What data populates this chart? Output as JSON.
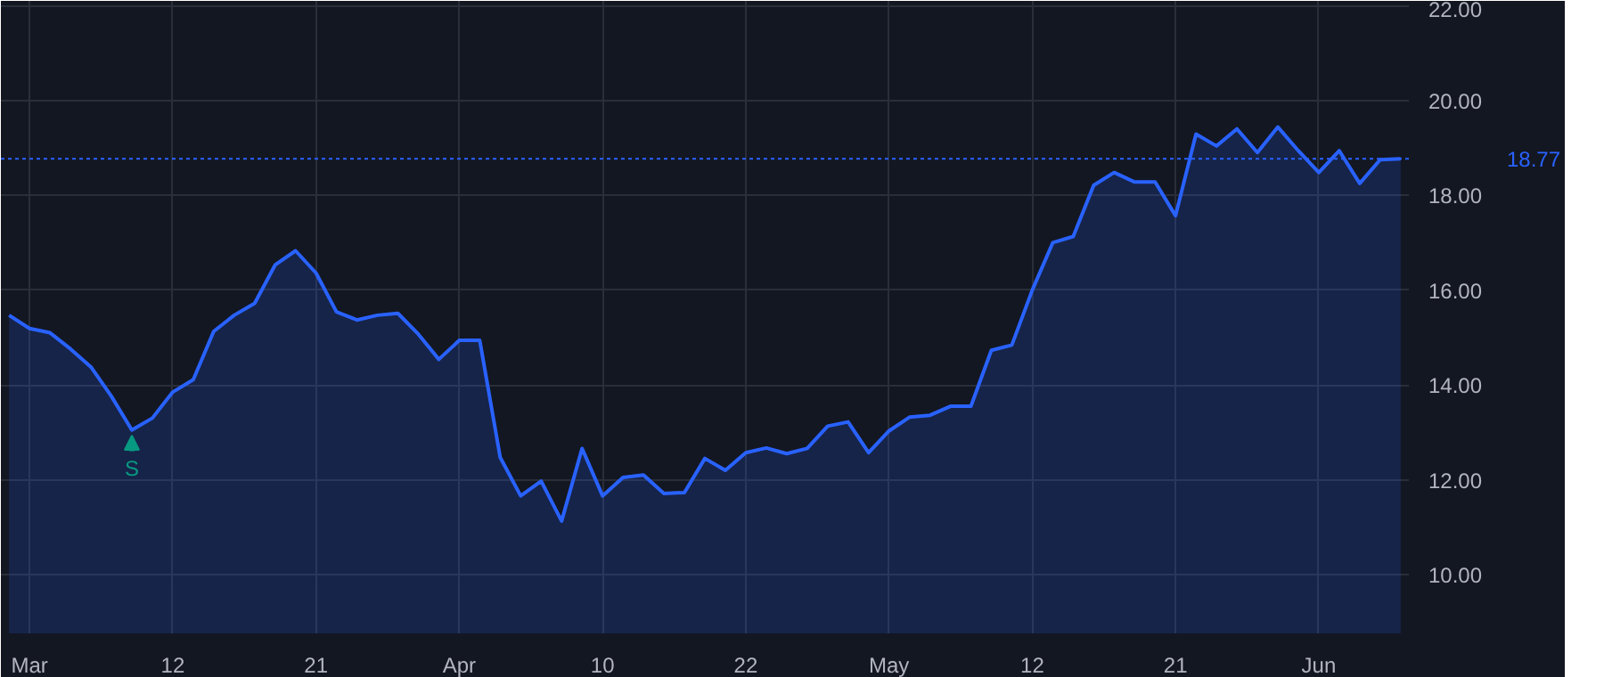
{
  "chart_data": {
    "type": "area",
    "categories": [
      null,
      "Mar",
      null,
      null,
      null,
      null,
      null,
      null,
      "12",
      null,
      null,
      null,
      null,
      null,
      null,
      "21",
      null,
      null,
      null,
      null,
      null,
      null,
      "Apr",
      null,
      null,
      null,
      null,
      null,
      null,
      "10",
      null,
      null,
      null,
      null,
      null,
      null,
      "22",
      null,
      null,
      null,
      null,
      null,
      null,
      "May",
      null,
      null,
      null,
      null,
      null,
      null,
      "12",
      null,
      null,
      null,
      null,
      null,
      null,
      "21",
      null,
      null,
      null,
      null,
      null,
      null,
      "Jun",
      null,
      null,
      null,
      null
    ],
    "series": [
      {
        "color": "#2962ff",
        "values": [
          15.47,
          15.19,
          15.1,
          14.76,
          14.38,
          13.76,
          13.05,
          13.3,
          13.85,
          14.11,
          15.13,
          15.47,
          15.72,
          16.53,
          16.83,
          16.36,
          15.54,
          15.37,
          15.47,
          15.51,
          15.07,
          14.54,
          14.94,
          14.94,
          12.47,
          11.66,
          11.97,
          11.13,
          12.66,
          11.66,
          12.05,
          12.1,
          11.71,
          11.73,
          12.45,
          12.2,
          12.57,
          12.67,
          12.55,
          12.66,
          13.13,
          13.22,
          12.57,
          13.03,
          13.32,
          13.36,
          13.55,
          13.55,
          14.73,
          14.84,
          16.0,
          17.0,
          17.13,
          18.21,
          18.48,
          18.28,
          18.28,
          17.57,
          19.29,
          19.04,
          19.4,
          18.9,
          19.44,
          18.94,
          18.48,
          18.94,
          18.25,
          18.75,
          18.77
        ]
      }
    ],
    "ylim": [
      8.76,
      22.1
    ],
    "yticks": [
      {
        "value": 10,
        "label": "10.00"
      },
      {
        "value": 12,
        "label": "12.00"
      },
      {
        "value": 14,
        "label": "14.00"
      },
      {
        "value": 16,
        "label": "16.00"
      },
      {
        "value": 18,
        "label": "18.00"
      },
      {
        "value": 20,
        "label": "20.00"
      },
      {
        "value": 22,
        "label": "22.00"
      }
    ],
    "grid": true,
    "ref_lines": [
      {
        "axis": "y",
        "value": 18.77,
        "label": "18.77",
        "color": "#2962ff",
        "line_style": "dotted"
      }
    ],
    "annotations": [
      {
        "text": "S",
        "y": 13.05
      }
    ]
  }
}
